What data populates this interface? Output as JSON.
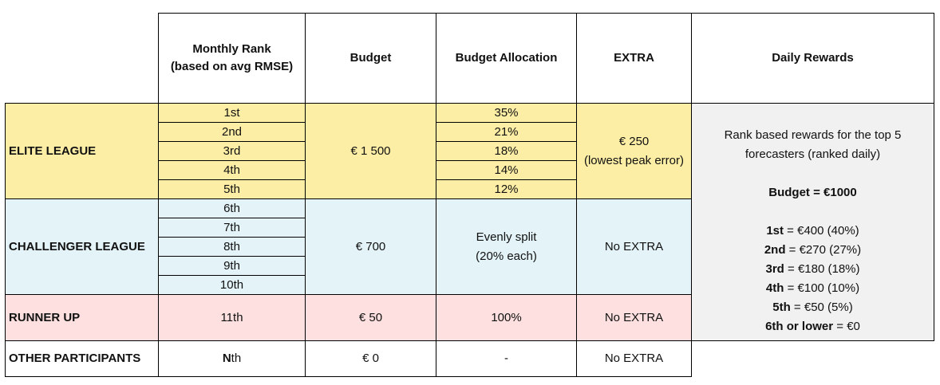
{
  "headers": {
    "monthly_rank": "Monthly Rank",
    "monthly_rank_sub": "(based on avg RMSE)",
    "budget": "Budget",
    "allocation": "Budget Allocation",
    "extra": "EXTRA",
    "daily": "Daily Rewards"
  },
  "elite": {
    "name": "ELITE LEAGUE",
    "ranks": [
      "1st",
      "2nd",
      "3rd",
      "4th",
      "5th"
    ],
    "budget": "€ 1 500",
    "allocations": [
      "35%",
      "21%",
      "18%",
      "14%",
      "12%"
    ],
    "extra_amount": "€ 250",
    "extra_note": "(lowest peak error)"
  },
  "challenger": {
    "name": "CHALLENGER LEAGUE",
    "ranks": [
      "6th",
      "7th",
      "8th",
      "9th",
      "10th"
    ],
    "budget": "€ 700",
    "allocation_line1": "Evenly split",
    "allocation_line2": "(20% each)",
    "extra": "No EXTRA"
  },
  "runner": {
    "name": "RUNNER UP",
    "rank": "11th",
    "budget": "€ 50",
    "allocation": "100%",
    "extra": "No EXTRA"
  },
  "other": {
    "name": "OTHER PARTICIPANTS",
    "rank_bold": "N",
    "rank_rest": "th",
    "budget": "€ 0",
    "allocation": "-",
    "extra": "No EXTRA"
  },
  "daily": {
    "intro_line1": "Rank based rewards for the top 5",
    "intro_line2": "forecasters (ranked daily)",
    "budget": "Budget = €1000",
    "rewards": [
      {
        "rank": "1st",
        "value": " = €400 (40%)"
      },
      {
        "rank": "2nd",
        "value": " = €270 (27%)"
      },
      {
        "rank": "3rd",
        "value": " = €180 (18%)"
      },
      {
        "rank": "4th",
        "value": " = €100 (10%)"
      },
      {
        "rank": "5th",
        "value": " = €50 (5%)"
      },
      {
        "rank": "6th or lower",
        "value": " = €0"
      }
    ]
  }
}
